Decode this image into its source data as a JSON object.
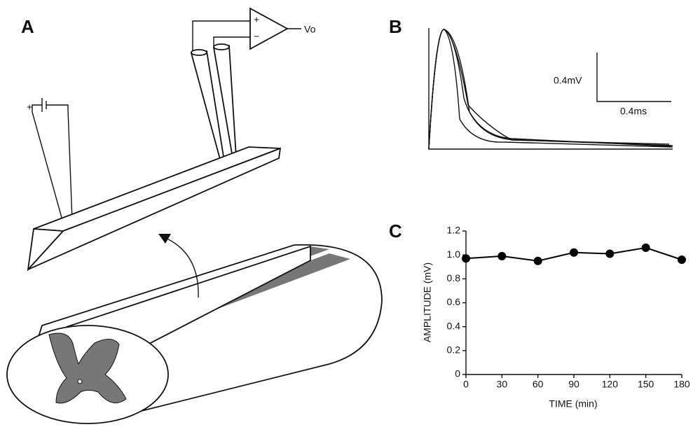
{
  "panels": {
    "A": {
      "label": "A",
      "amp_plus": "+",
      "amp_minus": "−",
      "output": "Vo",
      "battery_plus": "+"
    },
    "B": {
      "label": "B",
      "scale_voltage": "0.4mV",
      "scale_time": "0.4ms"
    },
    "C": {
      "label": "C"
    }
  },
  "chart_data": {
    "type": "line",
    "x_label": "TIME (min)",
    "y_label": "AMPLITUDE (mV)",
    "x": [
      0,
      30,
      60,
      90,
      120,
      150,
      180
    ],
    "series": [
      {
        "name": null,
        "color": "#000000",
        "values": [
          0.97,
          0.99,
          0.95,
          1.02,
          1.01,
          1.06,
          0.96
        ]
      }
    ],
    "xlim": [
      0,
      180
    ],
    "xticks": [
      0,
      30,
      60,
      90,
      120,
      150,
      180
    ],
    "ylim": [
      0,
      1.2
    ],
    "yticks": [
      0,
      0.2,
      0.4,
      0.6,
      0.8,
      {
        "value": 1,
        "label": "1.0"
      },
      1.2
    ]
  }
}
